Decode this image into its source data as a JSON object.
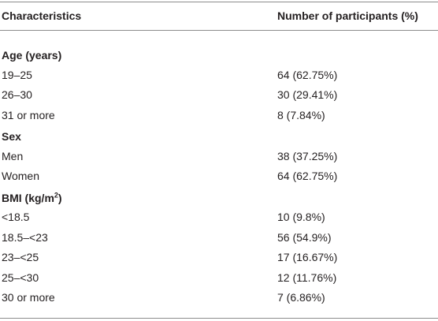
{
  "table": {
    "header": [
      "Characteristics",
      "Number of participants (%)"
    ],
    "sections": [
      {
        "label": "Age (years)",
        "rows": [
          [
            "19–25",
            "64 (62.75%)"
          ],
          [
            "26–30",
            "30 (29.41%)"
          ],
          [
            "31 or more",
            "8 (7.84%)"
          ]
        ]
      },
      {
        "label": "Sex",
        "rows": [
          [
            "Men",
            "38 (37.25%)"
          ],
          [
            "Women",
            "64 (62.75%)"
          ]
        ]
      },
      {
        "label": "BMI (kg/m",
        "label_sup": "2",
        "label_end": ")",
        "rows": [
          [
            "<18.5",
            "10 (9.8%)"
          ],
          [
            "18.5–<23",
            "56 (54.9%)"
          ],
          [
            "23–<25",
            "17 (16.67%)"
          ],
          [
            "25–<30",
            "12 (11.76%)"
          ],
          [
            "30 or more",
            "7 (6.86%)"
          ]
        ]
      }
    ]
  }
}
